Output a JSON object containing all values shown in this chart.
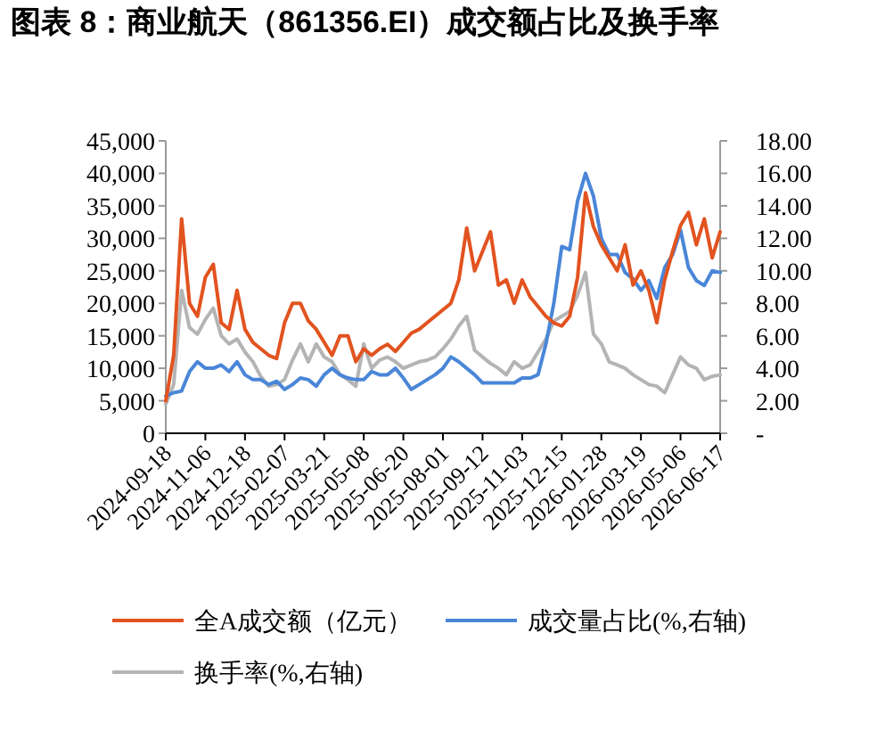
{
  "chart_data": {
    "type": "line",
    "title": "图表 8：商业航天（861356.EI）成交额占比及换手率",
    "categories": [
      "2024-09-18",
      null,
      null,
      null,
      null,
      "2024-11-06",
      null,
      null,
      null,
      null,
      "2024-12-18",
      null,
      null,
      null,
      null,
      "2025-02-07",
      null,
      null,
      null,
      null,
      "2025-03-21",
      null,
      null,
      null,
      null,
      "2025-05-08",
      null,
      null,
      null,
      null,
      "2025-06-20",
      null,
      null,
      null,
      null,
      "2025-08-01",
      null,
      null,
      null,
      null,
      "2025-09-12",
      null,
      null,
      null,
      null,
      "2025-11-03",
      null,
      null,
      null,
      null,
      "2025-12-15",
      null,
      null,
      null,
      null,
      "2026-01-28",
      null,
      null,
      null,
      null,
      "2026-03-19",
      null,
      null,
      null,
      null,
      "2026-05-06",
      null,
      null,
      null,
      null,
      "2026-06-17"
    ],
    "series": [
      {
        "name": "全A成交额（亿元）",
        "color": "#e2531f",
        "values": [
          5000,
          12000,
          33000,
          20000,
          18000,
          24000,
          26000,
          17000,
          16000,
          22000,
          16000,
          14000,
          13000,
          12000,
          11500,
          17000,
          20000,
          20000,
          17300,
          16000,
          14000,
          12000,
          15000,
          15000,
          11000,
          13000,
          12000,
          13000,
          13700,
          12600,
          14000,
          15400,
          16000,
          17000,
          18000,
          19000,
          20000,
          23600,
          31600,
          25000,
          28000,
          31000,
          22800,
          23600,
          20000,
          23600,
          21000,
          19500,
          18000,
          17000,
          16500,
          18000,
          24000,
          37000,
          31800,
          29000,
          27000,
          25000,
          29000,
          22800,
          25000,
          22000,
          17000,
          23600,
          28000,
          32000,
          34000,
          29000,
          33000,
          27000,
          31000
        ]
      },
      {
        "name": "成交量占比(%,右轴)",
        "color": "#4a86d8",
        "axis": "y2",
        "values": [
          2.3,
          2.5,
          2.6,
          3.8,
          4.4,
          4.0,
          4.0,
          4.2,
          3.8,
          4.4,
          3.6,
          3.3,
          3.3,
          3.0,
          3.2,
          2.7,
          3.0,
          3.4,
          3.3,
          2.9,
          3.6,
          4.0,
          3.6,
          3.4,
          3.3,
          3.3,
          3.8,
          3.6,
          3.6,
          4.0,
          3.4,
          2.7,
          3.0,
          3.3,
          3.6,
          4.0,
          4.7,
          4.4,
          4.0,
          3.6,
          3.1,
          3.1,
          3.1,
          3.1,
          3.1,
          3.4,
          3.4,
          3.6,
          5.5,
          8.0,
          11.5,
          11.3,
          14.3,
          16.0,
          14.6,
          12.0,
          11.0,
          11.0,
          9.9,
          9.5,
          8.8,
          9.4,
          8.3,
          10.2,
          11.0,
          12.5,
          10.2,
          9.4,
          9.1,
          10.0,
          9.9
        ]
      },
      {
        "name": "换手率(%,右轴)",
        "color": "#b4b4b4",
        "axis": "y2",
        "values": [
          1.8,
          3.0,
          8.8,
          6.5,
          6.1,
          7.0,
          7.7,
          6.0,
          5.5,
          5.8,
          5.0,
          4.4,
          3.5,
          2.9,
          3.0,
          3.3,
          4.5,
          5.5,
          4.4,
          5.5,
          4.7,
          4.4,
          3.6,
          3.3,
          2.9,
          5.5,
          4.0,
          4.5,
          4.7,
          4.4,
          4.0,
          4.2,
          4.4,
          4.5,
          4.7,
          5.2,
          5.8,
          6.6,
          7.2,
          5.1,
          4.7,
          4.3,
          4.0,
          3.6,
          4.4,
          4.0,
          4.2,
          5.0,
          5.8,
          6.9,
          7.2,
          7.5,
          8.5,
          9.9,
          6.1,
          5.5,
          4.4,
          4.2,
          4.0,
          3.6,
          3.3,
          3.0,
          2.9,
          2.5,
          3.6,
          4.7,
          4.2,
          4.0,
          3.3,
          3.5,
          3.6
        ]
      }
    ],
    "ylim": [
      0,
      45000
    ],
    "yticks": [
      0,
      {
        "value": 5000,
        "label": "5,000"
      },
      {
        "value": 10000,
        "label": "10,000"
      },
      {
        "value": 15000,
        "label": "15,000"
      },
      {
        "value": 20000,
        "label": "20,000"
      },
      {
        "value": 25000,
        "label": "25,000"
      },
      {
        "value": 30000,
        "label": "30,000"
      },
      {
        "value": 35000,
        "label": "35,000"
      },
      {
        "value": 40000,
        "label": "40,000"
      },
      {
        "value": 45000,
        "label": "45,000"
      }
    ],
    "y2lim": [
      0,
      18
    ],
    "y2ticks": [
      {
        "value": 0,
        "label": "-"
      },
      {
        "value": 2,
        "label": "2.00"
      },
      {
        "value": 4,
        "label": "4.00"
      },
      {
        "value": 6,
        "label": "6.00"
      },
      {
        "value": 8,
        "label": "8.00"
      },
      {
        "value": 10,
        "label": "10.00"
      },
      {
        "value": 12,
        "label": "12.00"
      },
      {
        "value": 14,
        "label": "14.00"
      },
      {
        "value": 16,
        "label": "16.00"
      },
      {
        "value": 18,
        "label": "18.00"
      }
    ],
    "grid": false,
    "legend": "bottom"
  }
}
